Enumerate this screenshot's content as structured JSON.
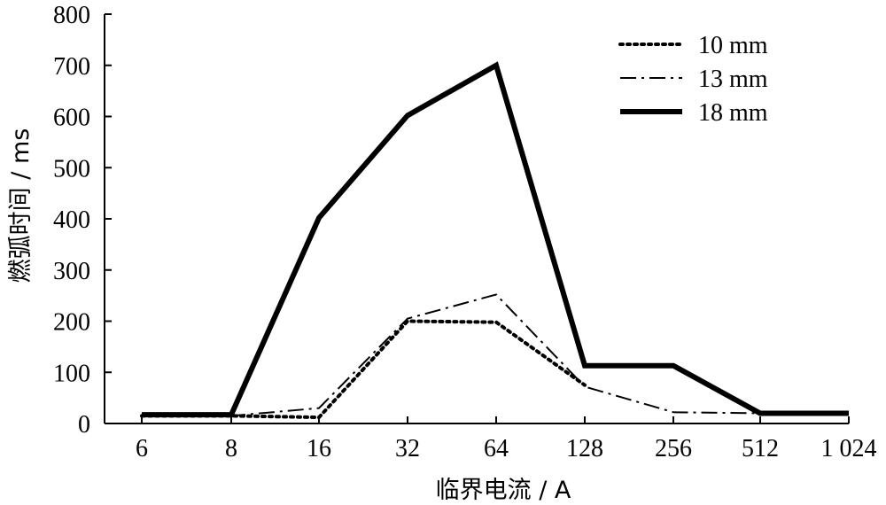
{
  "chart_data": {
    "type": "line",
    "categories": [
      "6",
      "8",
      "16",
      "32",
      "64",
      "128",
      "256",
      "512",
      "1 024"
    ],
    "xlabel": "临界电流 / A",
    "ylabel": "燃弧时间 / ms",
    "ylim": [
      0,
      800
    ],
    "yticks": [
      "0",
      "100",
      "200",
      "300",
      "400",
      "500",
      "600",
      "700",
      "800"
    ],
    "grid": false,
    "legend_position": "top-right",
    "series": [
      {
        "name": "10 mm",
        "style": "dotted",
        "values": [
          15,
          15,
          12,
          200,
          198,
          75,
          null,
          null,
          null
        ]
      },
      {
        "name": "13 mm",
        "style": "dashdot",
        "values": [
          15,
          15,
          30,
          205,
          252,
          72,
          22,
          20,
          20
        ]
      },
      {
        "name": "18 mm",
        "style": "solid",
        "values": [
          17,
          17,
          402,
          602,
          700,
          113,
          113,
          20,
          20
        ]
      }
    ]
  }
}
